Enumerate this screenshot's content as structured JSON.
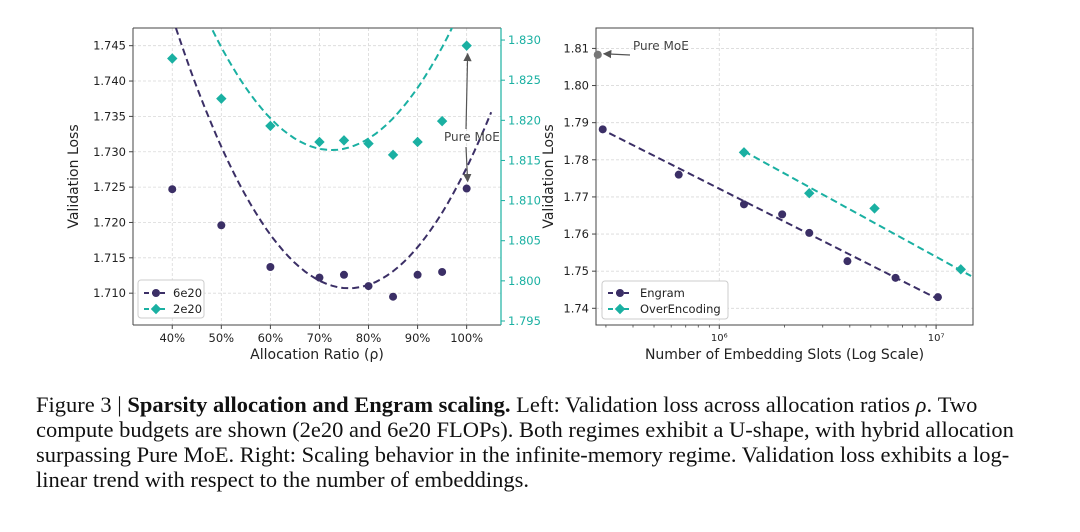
{
  "chart_data": [
    {
      "type": "scatter",
      "xlabel": "Allocation Ratio (ρ)",
      "ylabel": "Validation Loss",
      "y2label": "Validation Loss",
      "x_ticks": [
        "40%",
        "50%",
        "60%",
        "70%",
        "80%",
        "90%",
        "100%"
      ],
      "x_tick_values": [
        40,
        50,
        60,
        70,
        80,
        90,
        100
      ],
      "xlim": [
        32,
        107
      ],
      "ylim": [
        1.7055,
        1.7475
      ],
      "y_ticks": [
        "1.710",
        "1.715",
        "1.720",
        "1.725",
        "1.730",
        "1.735",
        "1.740",
        "1.745"
      ],
      "y_tick_values": [
        1.71,
        1.715,
        1.72,
        1.725,
        1.73,
        1.735,
        1.74,
        1.745
      ],
      "y2lim": [
        1.7945,
        1.8315
      ],
      "y2_ticks": [
        "1.795",
        "1.800",
        "1.805",
        "1.810",
        "1.815",
        "1.820",
        "1.825",
        "1.830"
      ],
      "y2_tick_values": [
        1.795,
        1.8,
        1.805,
        1.81,
        1.815,
        1.82,
        1.825,
        1.83
      ],
      "grid": true,
      "legend_position": "bottom-left",
      "annotation": "Pure MoE",
      "series": [
        {
          "name": "6e20",
          "axis": "left",
          "color": "#3b2f66",
          "marker": "circle",
          "x": [
            40,
            50,
            60,
            70,
            75,
            80,
            85,
            90,
            95,
            100
          ],
          "y": [
            1.7247,
            1.7196,
            1.7137,
            1.7122,
            1.7126,
            1.711,
            1.7095,
            1.7126,
            1.713,
            1.7248
          ],
          "fit": {
            "a": 2.96e-05,
            "x0": 76,
            "c": 1.7107,
            "x_range": [
              38,
              105
            ]
          }
        },
        {
          "name": "2e20",
          "axis": "right",
          "color": "#1ab0a2",
          "marker": "diamond",
          "x": [
            40,
            50,
            60,
            70,
            75,
            80,
            85,
            90,
            95,
            100
          ],
          "y": [
            1.8277,
            1.8227,
            1.8193,
            1.8173,
            1.8175,
            1.8171,
            1.8157,
            1.8173,
            1.8199,
            1.8293
          ],
          "fit": {
            "a": 2.53e-05,
            "x0": 72.5,
            "c": 1.8163,
            "x_range": [
              38,
              105
            ]
          }
        }
      ]
    },
    {
      "type": "scatter",
      "xlabel": "Number of Embedding Slots (Log Scale)",
      "ylabel": "Validation Loss",
      "x_scale": "log",
      "x_ticks": [
        "10⁶",
        "10⁷"
      ],
      "x_tick_values": [
        1000000,
        10000000
      ],
      "xlim": [
        270000,
        14800000
      ],
      "ylim": [
        1.7355,
        1.8155
      ],
      "y_ticks": [
        "1.74",
        "1.75",
        "1.76",
        "1.77",
        "1.78",
        "1.79",
        "1.80",
        "1.81"
      ],
      "y_tick_values": [
        1.74,
        1.75,
        1.76,
        1.77,
        1.78,
        1.79,
        1.8,
        1.81
      ],
      "grid": true,
      "legend_position": "bottom-left",
      "series": [
        {
          "name": "Engram",
          "color": "#3b2f66",
          "marker": "circle",
          "x": [
            290000,
            650000,
            1300000,
            1950000,
            2600000,
            3900000,
            6500000,
            10200000
          ],
          "y": [
            1.7882,
            1.776,
            1.768,
            1.7653,
            1.7603,
            1.7527,
            1.7482,
            1.743
          ],
          "fit_x": [
            280000,
            10200000
          ],
          "fit_y": [
            1.7885,
            1.7425
          ]
        },
        {
          "name": "OverEncoding",
          "color": "#1ab0a2",
          "marker": "diamond",
          "x": [
            1300000,
            2600000,
            5200000,
            13000000
          ],
          "y": [
            1.782,
            1.771,
            1.7669,
            1.7505
          ],
          "fit_x": [
            1300000,
            14500000
          ],
          "fit_y": [
            1.7823,
            1.7487
          ]
        },
        {
          "name": "Pure MoE",
          "color": "#777777",
          "marker": "circle",
          "x": [
            275000
          ],
          "y": [
            1.8083
          ],
          "annotation": "Pure MoE"
        }
      ]
    }
  ],
  "caption": {
    "label": "Figure 3 | ",
    "title": "Sparsity allocation and Engram scaling.",
    "text_1": " Left: Validation loss across allocation ratios ",
    "rho": "ρ",
    "text_2": ". Two compute budgets are shown (2e20 and 6e20 FLOPs). Both regimes exhibit a U-shape, with hybrid allocation surpassing Pure MoE. Right: Scaling behavior in the infinite-memory regime. Validation loss exhibits a log-linear trend with respect to the number of embeddings."
  }
}
